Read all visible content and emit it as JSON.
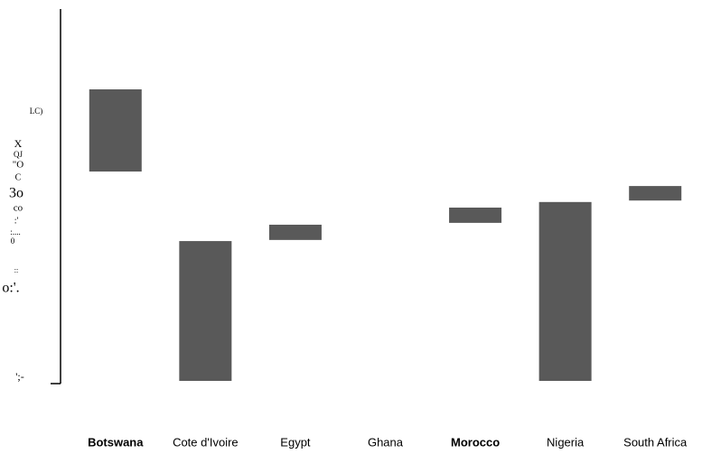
{
  "chart_data": {
    "type": "floating_bar",
    "categories": [
      "Botswana",
      "Cote d'Ivoire",
      "Egypt",
      "Ghana",
      "Morocco",
      "Nigeria",
      "South Africa"
    ],
    "bold": [
      true,
      false,
      false,
      false,
      true,
      false,
      false
    ],
    "lows": [
      56.3,
      0,
      37.9,
      null,
      42.5,
      0,
      48.5
    ],
    "highs": [
      78.4,
      37.6,
      42.0,
      null,
      46.6,
      48.1,
      52.4
    ],
    "color": "#595959",
    "ylim": [
      0,
      100
    ],
    "y_axis_fragments": [
      "LC)",
      "X",
      "QJ",
      "\"O",
      "C",
      "3o",
      "co",
      ":'",
      ":....",
      "0",
      "::",
      "o:'.",
      "';-"
    ]
  }
}
